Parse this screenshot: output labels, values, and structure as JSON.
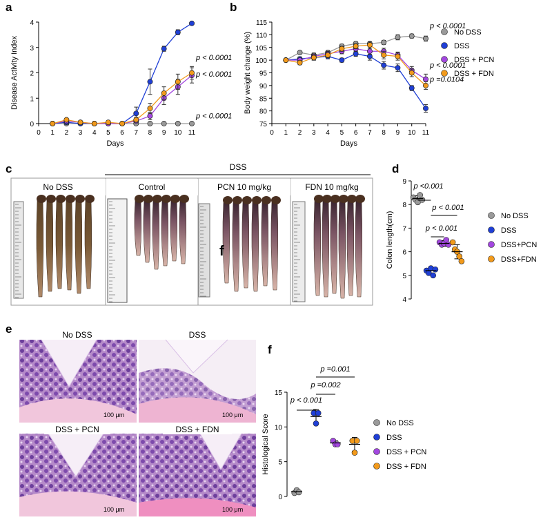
{
  "panels": {
    "a": "a",
    "b": "b",
    "c": "c",
    "d": "d",
    "e": "e",
    "f": "f"
  },
  "colors": {
    "No DSS": "#9a9a9a",
    "DSS": "#1f3fd6",
    "DSS + PCN": "#a347e0",
    "DSS + FDN": "#f29a1b"
  },
  "chart_data": [
    {
      "id": "a",
      "type": "line",
      "xlabel": "Days",
      "ylabel": "Disease Activity Index",
      "xlim": [
        0,
        11
      ],
      "ylim": [
        0,
        4
      ],
      "xticks": [
        0,
        1,
        2,
        3,
        4,
        5,
        6,
        7,
        8,
        9,
        10,
        11
      ],
      "yticks": [
        0,
        1,
        2,
        3,
        4
      ],
      "x": [
        1,
        2,
        3,
        4,
        5,
        6,
        7,
        8,
        9,
        10,
        11
      ],
      "series": [
        {
          "name": "No DSS",
          "values": [
            0,
            0,
            0,
            0,
            0,
            0,
            0,
            0,
            0,
            0,
            0
          ],
          "err": [
            0,
            0,
            0,
            0,
            0,
            0,
            0,
            0,
            0,
            0,
            0
          ]
        },
        {
          "name": "DSS",
          "values": [
            0,
            0.05,
            0,
            0,
            0,
            0,
            0.4,
            1.65,
            2.95,
            3.6,
            3.95
          ],
          "err": [
            0,
            0.05,
            0,
            0,
            0,
            0,
            0.25,
            0.5,
            0.1,
            0.1,
            0
          ]
        },
        {
          "name": "DSS + PCN",
          "values": [
            0,
            0.1,
            0.05,
            0,
            0,
            0,
            0.1,
            0.3,
            1,
            1.45,
            1.9
          ],
          "err": [
            0,
            0.05,
            0.05,
            0,
            0,
            0,
            0.05,
            0.15,
            0.25,
            0.3,
            0.3
          ]
        },
        {
          "name": "DSS + FDN",
          "values": [
            0,
            0.15,
            0.05,
            0,
            0.05,
            0,
            0.15,
            0.6,
            1.2,
            1.65,
            2
          ],
          "err": [
            0,
            0.05,
            0.05,
            0,
            0.05,
            0,
            0.1,
            0.2,
            0.25,
            0.3,
            0.25
          ]
        }
      ],
      "annotations": [
        {
          "text": "p < 0.0001",
          "x": 11,
          "y": 2.5
        },
        {
          "text": "p < 0.0001",
          "x": 11,
          "y": 1.85
        },
        {
          "text": "p < 0.0001",
          "x": 11,
          "y": 0.2
        }
      ]
    },
    {
      "id": "b",
      "type": "line",
      "xlabel": "Days",
      "ylabel": "Body weight change (%)",
      "xlim": [
        0,
        11
      ],
      "ylim": [
        75,
        115
      ],
      "xticks": [
        0,
        1,
        2,
        3,
        4,
        5,
        6,
        7,
        8,
        9,
        10,
        11
      ],
      "yticks": [
        75,
        80,
        85,
        90,
        95,
        100,
        105,
        110,
        115
      ],
      "x": [
        1,
        2,
        3,
        4,
        5,
        6,
        7,
        8,
        9,
        10,
        11
      ],
      "series": [
        {
          "name": "No DSS",
          "values": [
            100,
            103,
            102,
            103,
            105.5,
            106.5,
            106.5,
            107,
            109,
            109.5,
            108.5
          ],
          "err": [
            0,
            0.5,
            0.8,
            0.8,
            0.8,
            0.8,
            0.8,
            0.8,
            1,
            0.8,
            1
          ]
        },
        {
          "name": "DSS",
          "values": [
            100,
            100.5,
            101,
            101.5,
            100,
            102.5,
            101.5,
            98,
            97,
            89,
            81
          ],
          "err": [
            0,
            0.8,
            1,
            1,
            0.8,
            1,
            1.5,
            1.5,
            1.5,
            1,
            1.5
          ]
        },
        {
          "name": "DSS + PCN",
          "values": [
            100,
            100,
            101.5,
            102.5,
            103.5,
            104.5,
            103.5,
            103.5,
            102,
            96,
            92.5
          ],
          "err": [
            0,
            0.8,
            1,
            1,
            1,
            1,
            1.2,
            1.2,
            1.2,
            1.5,
            2
          ]
        },
        {
          "name": "DSS + FDN",
          "values": [
            100,
            99,
            101,
            102,
            104.5,
            105.5,
            106,
            102,
            101.5,
            95,
            90
          ],
          "err": [
            0,
            0.8,
            1,
            1,
            1,
            1,
            1.2,
            1.5,
            1.5,
            1.5,
            1.5
          ]
        }
      ],
      "annotations": [
        {
          "text": "p < 0.0001",
          "x": 11,
          "y": 112.5
        },
        {
          "text": "p < 0.0001",
          "x": 11,
          "y": 97
        },
        {
          "text": "p =0.0104",
          "x": 11,
          "y": 91.5
        }
      ]
    },
    {
      "id": "d",
      "type": "scatter",
      "ylabel": "Colon length(cm)",
      "ylim": [
        4,
        9
      ],
      "yticks": [
        4,
        5,
        6,
        7,
        8,
        9
      ],
      "categories": [
        "No DSS",
        "DSS",
        "DSS+PCN",
        "DSS+FDN"
      ],
      "series": [
        {
          "name": "No DSS",
          "points": [
            8.3,
            8.2,
            8.1,
            8.4,
            8.2
          ],
          "mean": 8.25,
          "sd": 0.12
        },
        {
          "name": "DSS",
          "points": [
            5.2,
            5.1,
            5.3,
            5.0,
            5.25
          ],
          "mean": 5.2,
          "sd": 0.12
        },
        {
          "name": "DSS+PCN",
          "points": [
            6.4,
            6.3,
            6.35,
            6.5,
            6.3
          ],
          "mean": 6.35,
          "sd": 0.12
        },
        {
          "name": "DSS+FDN",
          "points": [
            6.4,
            6.1,
            6.0,
            5.8,
            5.6
          ],
          "mean": 6.0,
          "sd": 0.3
        }
      ],
      "comparisons": [
        {
          "text": "p <0.001",
          "from": 0,
          "to": 1
        },
        {
          "text": "p < 0.001",
          "from": 1,
          "to": 3
        },
        {
          "text": "p < 0.001",
          "from": 1,
          "to": 2
        }
      ]
    },
    {
      "id": "f",
      "type": "scatter",
      "ylabel": "Histological Score",
      "ylim": [
        0,
        15
      ],
      "yticks": [
        0,
        5,
        10,
        15
      ],
      "categories": [
        "No DSS",
        "DSS",
        "DSS + PCN",
        "DSS + FDN"
      ],
      "series": [
        {
          "name": "No DSS",
          "points": [
            0.5,
            0.9,
            0.6
          ],
          "mean": 0.7,
          "sd": 0.3
        },
        {
          "name": "DSS",
          "points": [
            12,
            10.5,
            12
          ],
          "mean": 11.5,
          "sd": 1.0
        },
        {
          "name": "DSS + PCN",
          "points": [
            8,
            7.5,
            7.5
          ],
          "mean": 7.7,
          "sd": 0.3
        },
        {
          "name": "DSS + FDN",
          "points": [
            8,
            6.3,
            8
          ],
          "mean": 7.5,
          "sd": 1.0
        }
      ],
      "comparisons": [
        {
          "text": "p < 0.001",
          "from": 0,
          "to": 1
        },
        {
          "text": "p =0.002",
          "from": 1,
          "to": 2
        },
        {
          "text": "p =0.001",
          "from": 1,
          "to": 3
        }
      ]
    }
  ],
  "panel_c": {
    "group_label": "DSS",
    "photos": [
      "No DSS",
      "Control",
      "PCN 10 mg/kg",
      "FDN 10 mg/kg"
    ],
    "stray_letter": "f"
  },
  "panel_e": {
    "images": [
      {
        "title": "No DSS",
        "scale": "100 μm"
      },
      {
        "title": "DSS",
        "scale": "100 μm"
      },
      {
        "title": "DSS + PCN",
        "scale": "100 μm"
      },
      {
        "title": "DSS + FDN",
        "scale": "100 μm"
      }
    ]
  }
}
